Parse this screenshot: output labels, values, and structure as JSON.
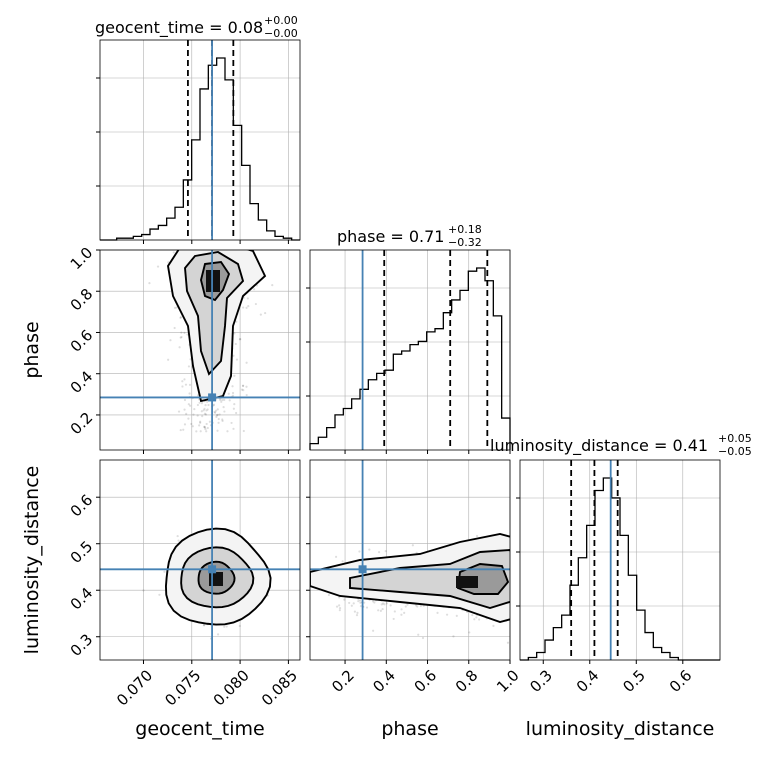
{
  "chart_data": {
    "type": "corner",
    "parameters": [
      "geocent_time",
      "phase",
      "luminosity_distance"
    ],
    "truth": {
      "geocent_time": 0.0771,
      "phase": 0.285,
      "luminosity_distance": 0.445
    },
    "titles": {
      "geocent_time": {
        "name": "geocent_time",
        "median": "0.08",
        "plus": "+0.00",
        "minus": "−0.00"
      },
      "phase": {
        "name": "phase",
        "median": "0.71",
        "plus": "+0.18",
        "minus": "−0.32"
      },
      "luminosity_distance": {
        "name": "luminosity_distance",
        "median": "0.41",
        "plus": "+0.05",
        "minus": "−0.05"
      }
    },
    "axes": {
      "geocent_time": {
        "label": "geocent_time",
        "range": [
          0.0655,
          0.0862
        ],
        "ticks": [
          0.07,
          0.075,
          0.08,
          0.085
        ],
        "tick_labels": [
          "0.070",
          "0.075",
          "0.080",
          "0.085"
        ]
      },
      "phase": {
        "label": "phase",
        "range": [
          0.03,
          1.0
        ],
        "ticks": [
          0.2,
          0.4,
          0.6,
          0.8,
          1.0
        ],
        "tick_labels": [
          "0.2",
          "0.4",
          "0.6",
          "0.8",
          "1.0"
        ]
      },
      "luminosity_distance": {
        "label": "luminosity_distance",
        "range": [
          0.25,
          0.68
        ],
        "ticks": [
          0.3,
          0.4,
          0.5,
          0.6
        ],
        "tick_labels": [
          "0.3",
          "0.4",
          "0.5",
          "0.6"
        ]
      }
    },
    "quantiles": {
      "geocent_time": [
        0.0746,
        0.0771,
        0.0793
      ],
      "phase": [
        0.39,
        0.71,
        0.89
      ],
      "luminosity_distance": [
        0.36,
        0.41,
        0.46
      ]
    },
    "hist": {
      "geocent_time": {
        "edges_range": [
          0.0655,
          0.0862
        ],
        "counts": [
          0,
          0,
          1,
          1,
          2,
          3,
          6,
          8,
          12,
          18,
          33,
          55,
          83,
          96,
          100,
          88,
          63,
          41,
          20,
          11,
          5,
          2,
          1,
          0
        ]
      },
      "phase": {
        "edges_range": [
          0.03,
          1.0
        ],
        "counts": [
          2,
          4,
          7,
          11,
          13,
          16,
          19,
          22,
          24,
          25,
          30,
          31,
          33,
          34,
          37,
          38,
          43,
          47,
          50,
          56,
          57,
          53,
          42,
          10
        ]
      },
      "luminosity_distance": {
        "edges_range": [
          0.25,
          0.68
        ],
        "counts": [
          0,
          1,
          3,
          8,
          13,
          18,
          30,
          41,
          54,
          68,
          73,
          65,
          50,
          34,
          20,
          11,
          5,
          3,
          1,
          0,
          0,
          0,
          0,
          0
        ]
      }
    },
    "grid": true
  }
}
